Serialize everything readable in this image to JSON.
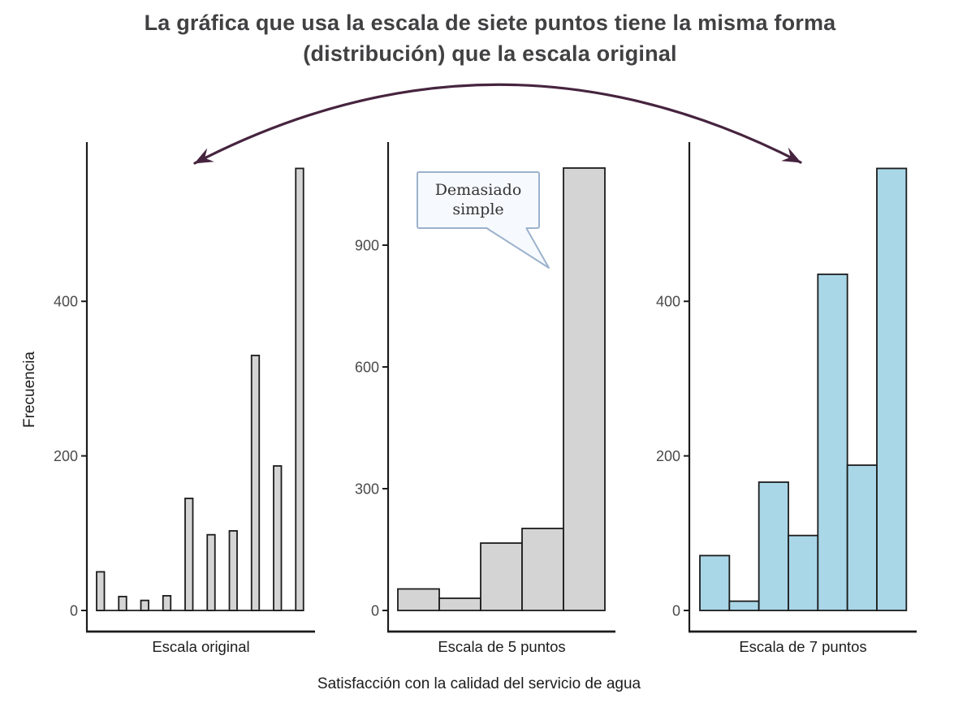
{
  "header": {
    "title": "La gráfica que usa la escala de siete puntos tiene la misma forma (distribución) que la escala original"
  },
  "axes": {
    "y_label": "Frecuencia",
    "x_label": "Satisfacción con la calidad del servicio de agua"
  },
  "annotation": {
    "callout_text": "Demasiado simple"
  },
  "colors": {
    "bar_gray": "#d4d4d4",
    "bar_blue": "#a9d7e8",
    "bar_stroke": "#1c1c1c",
    "axis_line": "#1c1c1c",
    "arrow": "#46243f",
    "callout_border": "#9cb2cc",
    "callout_fill": "#f6f9fd",
    "title_text": "#414042"
  },
  "chart_data": [
    {
      "type": "bar",
      "panel_label": "Escala original",
      "values": [
        50,
        18,
        13,
        19,
        145,
        98,
        103,
        330,
        187,
        572
      ],
      "yticks": [
        0,
        200,
        400
      ],
      "ylim": [
        0,
        604
      ],
      "color": "bar_gray",
      "xlabel_shared": "Satisfacción con la calidad del servicio de agua",
      "ylabel_shared": "Frecuencia",
      "grid": "off",
      "legend": "none"
    },
    {
      "type": "bar",
      "panel_label": "Escala de 5 puntos",
      "values": [
        53,
        30,
        166,
        202,
        1090
      ],
      "yticks": [
        0,
        300,
        600,
        900
      ],
      "ylim": [
        0,
        1150
      ],
      "color": "bar_gray",
      "grid": "off",
      "legend": "none"
    },
    {
      "type": "bar",
      "panel_label": "Escala de 7 puntos",
      "values": [
        71,
        12,
        166,
        97,
        435,
        188,
        572
      ],
      "yticks": [
        0,
        200,
        400
      ],
      "ylim": [
        0,
        604
      ],
      "color": "bar_blue",
      "grid": "off",
      "legend": "none"
    }
  ]
}
